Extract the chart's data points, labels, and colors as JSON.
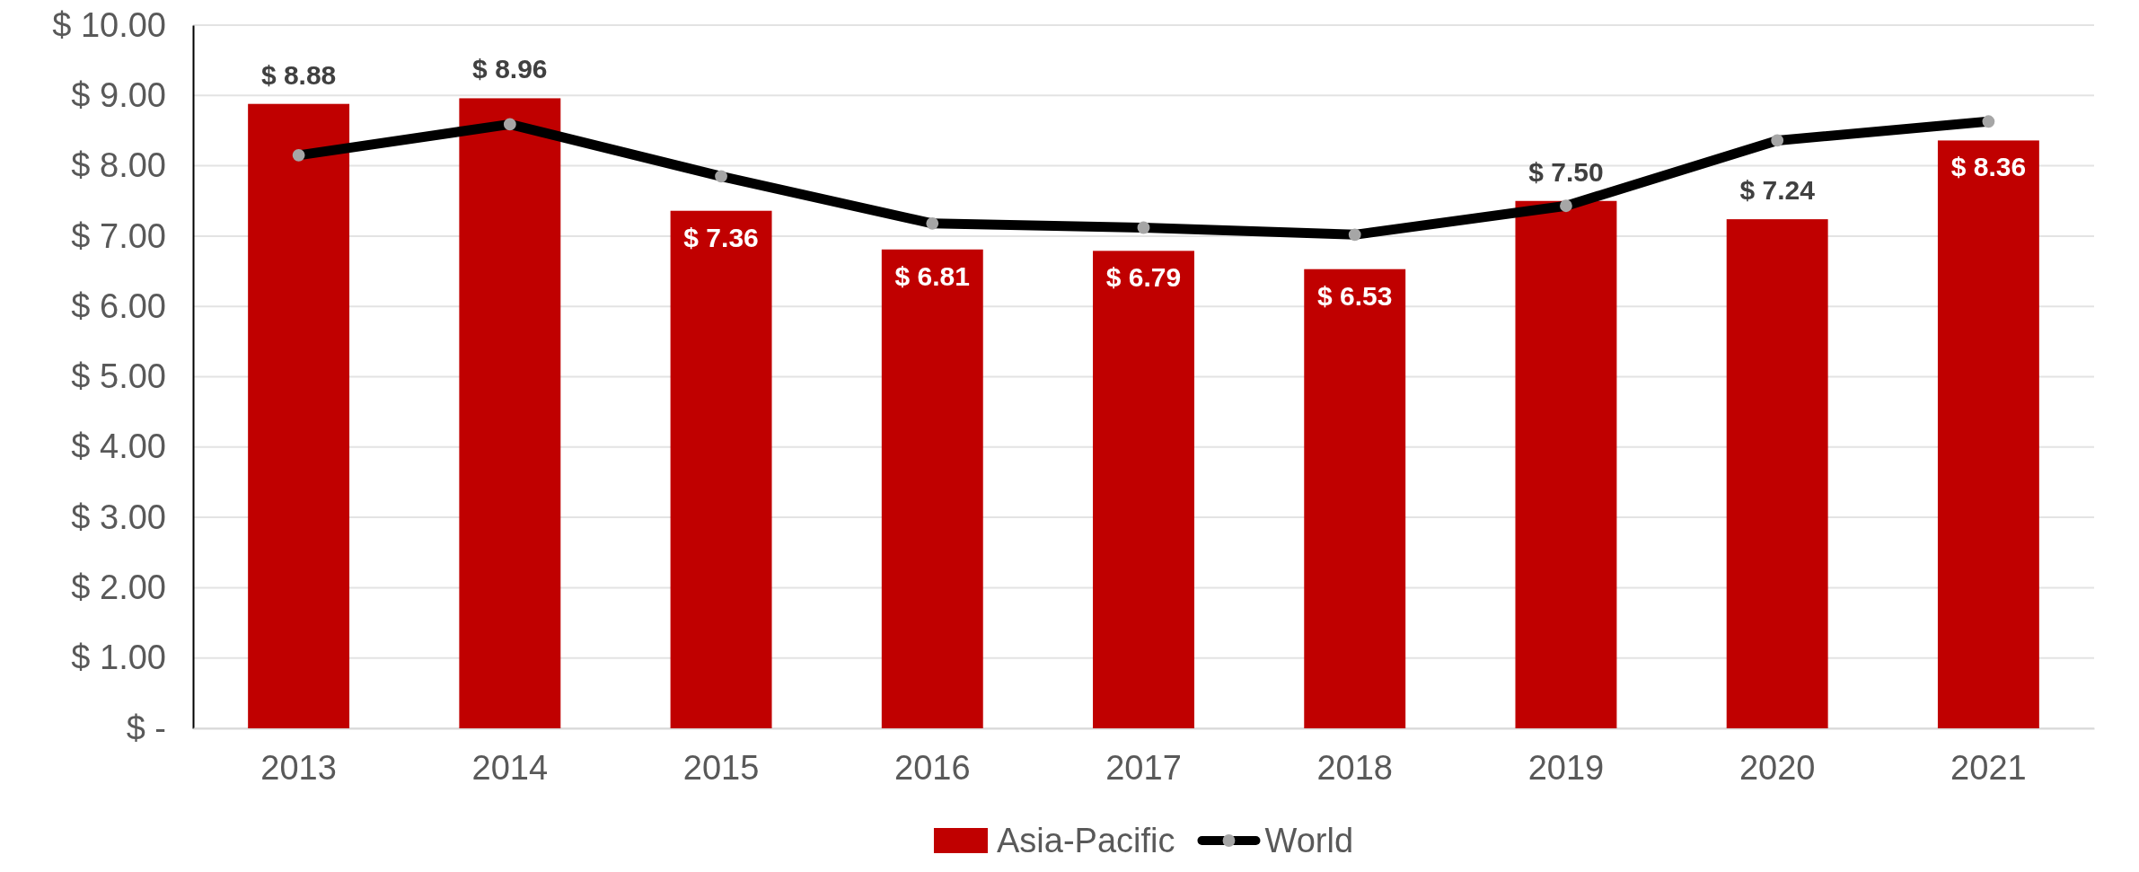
{
  "chart_data": {
    "type": "bar",
    "categories": [
      "2013",
      "2014",
      "2015",
      "2016",
      "2017",
      "2018",
      "2019",
      "2020",
      "2021"
    ],
    "series": [
      {
        "name": "Asia-Pacific",
        "color": "#c00000",
        "values": [
          8.88,
          8.96,
          7.36,
          6.81,
          6.79,
          6.53,
          7.5,
          7.24,
          8.36
        ],
        "value_labels": [
          "$ 8.88",
          "$ 8.96",
          "$ 7.36",
          "$ 6.81",
          "$ 6.79",
          "$ 6.53",
          "$ 7.50",
          "$ 7.24",
          "$ 8.36"
        ]
      },
      {
        "name": "World",
        "type": "line",
        "color": "#000000",
        "marker": "circle",
        "values": [
          8.15,
          8.59,
          7.85,
          7.18,
          7.12,
          7.02,
          7.43,
          8.36,
          8.63
        ]
      }
    ],
    "ylim": [
      0,
      10
    ],
    "yticks": [
      {
        "value": 0,
        "label": "$ -"
      },
      {
        "value": 1,
        "label": "$ 1.00"
      },
      {
        "value": 2,
        "label": "$ 2.00"
      },
      {
        "value": 3,
        "label": "$ 3.00"
      },
      {
        "value": 4,
        "label": "$ 4.00"
      },
      {
        "value": 5,
        "label": "$ 5.00"
      },
      {
        "value": 6,
        "label": "$ 6.00"
      },
      {
        "value": 7,
        "label": "$ 7.00"
      },
      {
        "value": 8,
        "label": "$ 8.00"
      },
      {
        "value": 9,
        "label": "$ 9.00"
      },
      {
        "value": 10,
        "label": "$ 10.00"
      }
    ],
    "grid": "y",
    "legend": "bottom"
  }
}
